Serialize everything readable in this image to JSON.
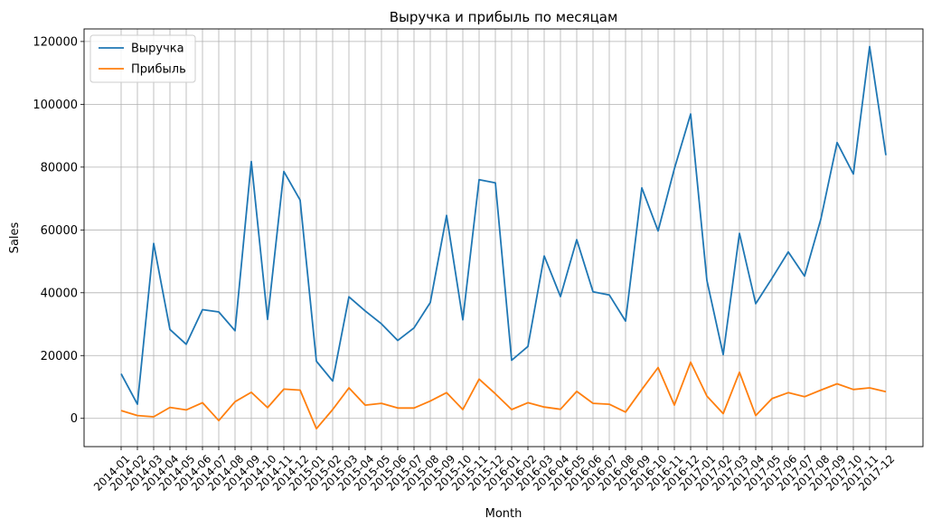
{
  "chart_data": {
    "type": "line",
    "title": "Выручка и прибыль по месяцам",
    "xlabel": "Month",
    "ylabel": "Sales",
    "ylim": [
      -9000,
      124000
    ],
    "yticks": [
      0,
      20000,
      40000,
      60000,
      80000,
      100000,
      120000
    ],
    "grid": true,
    "legend_position": "upper-left",
    "categories": [
      "2014-01",
      "2014-02",
      "2014-03",
      "2014-04",
      "2014-05",
      "2014-06",
      "2014-07",
      "2014-08",
      "2014-09",
      "2014-10",
      "2014-11",
      "2014-12",
      "2015-01",
      "2015-02",
      "2015-03",
      "2015-04",
      "2015-05",
      "2015-06",
      "2015-07",
      "2015-08",
      "2015-09",
      "2015-10",
      "2015-11",
      "2015-12",
      "2016-01",
      "2016-02",
      "2016-03",
      "2016-04",
      "2016-05",
      "2016-06",
      "2016-07",
      "2016-08",
      "2016-09",
      "2016-10",
      "2016-11",
      "2016-12",
      "2017-01",
      "2017-02",
      "2017-03",
      "2017-04",
      "2017-05",
      "2017-06",
      "2017-07",
      "2017-08",
      "2017-09",
      "2017-10",
      "2017-11",
      "2017-12"
    ],
    "series": [
      {
        "name": "Выручка",
        "color": "#1f77b4",
        "values": [
          14200,
          4500,
          55700,
          28300,
          23600,
          34600,
          33900,
          27900,
          81800,
          31500,
          78600,
          69500,
          18200,
          11900,
          38700,
          34200,
          30100,
          24800,
          28800,
          36900,
          64600,
          31400,
          76000,
          75000,
          18500,
          22900,
          51700,
          38800,
          56900,
          40300,
          39300,
          31000,
          73400,
          59700,
          79500,
          96900,
          43900,
          20300,
          58900,
          36500,
          44600,
          53000,
          45300,
          63400,
          87800,
          77800,
          118400,
          83800
        ]
      },
      {
        "name": "Прибыль",
        "color": "#ff7f0e",
        "values": [
          2500,
          900,
          500,
          3500,
          2700,
          5000,
          -700,
          5300,
          8300,
          3400,
          9300,
          9000,
          -3300,
          2800,
          9700,
          4200,
          4800,
          3300,
          3300,
          5500,
          8200,
          2800,
          12500,
          7800,
          2800,
          5000,
          3600,
          2900,
          8600,
          4800,
          4500,
          2000,
          9200,
          16200,
          4200,
          17900,
          7100,
          1500,
          14700,
          900,
          6300,
          8200,
          6900,
          9000,
          11000,
          9200,
          9700,
          8500
        ]
      }
    ]
  }
}
